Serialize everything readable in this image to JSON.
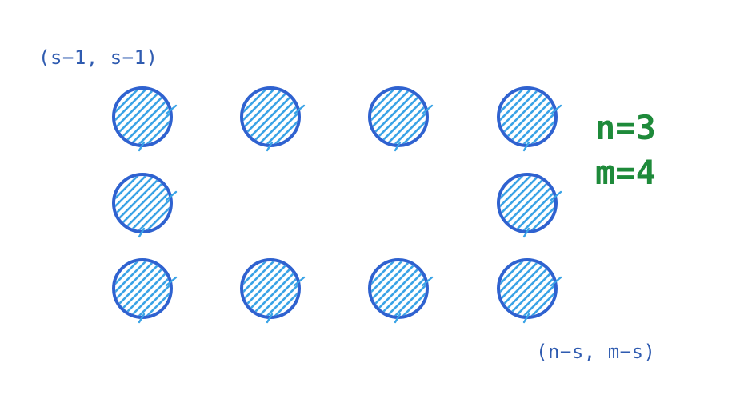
{
  "colors": {
    "circle_stroke": "#2f62d0",
    "circle_hatch": "#3aa3e6",
    "corner_label": "#2f5bb0",
    "params_text": "#1e8a3a",
    "background": "#ffffff"
  },
  "labels": {
    "top_left": "(s−1, s−1)",
    "bottom_right": "(n−s, m−s)",
    "n_param": "n=3",
    "m_param": "m=4"
  },
  "grid": {
    "rows": [
      [
        true,
        true,
        true,
        true
      ],
      [
        true,
        false,
        false,
        true
      ],
      [
        true,
        true,
        true,
        true
      ]
    ]
  }
}
